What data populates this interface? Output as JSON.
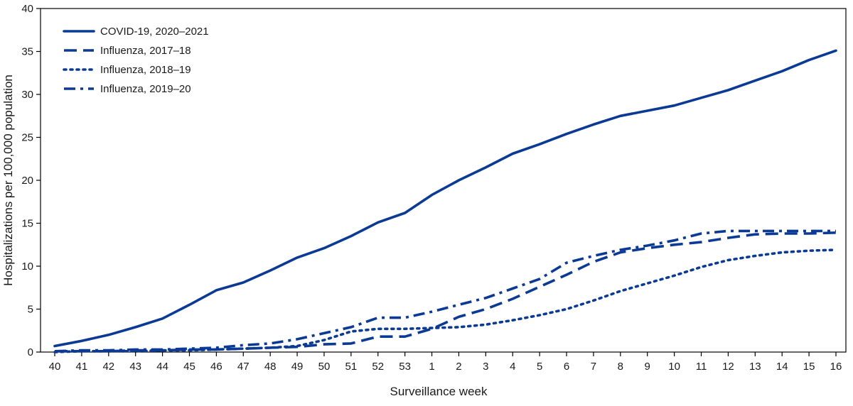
{
  "chart_data": {
    "type": "line",
    "xlabel": "Surveillance week",
    "ylabel": "Hospitalizations per 100,000 population",
    "ylim": [
      0,
      40
    ],
    "yticks": [
      0,
      5,
      10,
      15,
      20,
      25,
      30,
      35,
      40
    ],
    "grid": false,
    "legend_position": "top-left",
    "line_color": "#0b3a95",
    "categories": [
      "40",
      "41",
      "42",
      "43",
      "44",
      "45",
      "46",
      "47",
      "48",
      "49",
      "50",
      "51",
      "52",
      "53",
      "1",
      "2",
      "3",
      "4",
      "5",
      "6",
      "7",
      "8",
      "9",
      "10",
      "11",
      "12",
      "13",
      "14",
      "15",
      "16"
    ],
    "series": [
      {
        "name": "COVID-19, 2020–2021",
        "style": "solid",
        "values": [
          0.7,
          1.3,
          2.0,
          2.9,
          3.9,
          5.5,
          7.2,
          8.1,
          9.5,
          11.0,
          12.1,
          13.5,
          15.1,
          16.2,
          18.3,
          20.0,
          21.5,
          23.1,
          24.2,
          25.4,
          26.5,
          27.5,
          28.1,
          28.7,
          29.6,
          30.5,
          31.6,
          32.7,
          34.0,
          35.1
        ]
      },
      {
        "name": "Influenza, 2017–18",
        "style": "dashed",
        "values": [
          0.1,
          0.1,
          0.1,
          0.2,
          0.2,
          0.3,
          0.3,
          0.4,
          0.5,
          0.6,
          0.9,
          1.0,
          1.8,
          1.8,
          2.7,
          4.1,
          5.0,
          6.2,
          7.6,
          9.0,
          10.5,
          11.6,
          12.1,
          12.5,
          12.8,
          13.3,
          13.7,
          13.8,
          13.8,
          13.9
        ]
      },
      {
        "name": "Influenza, 2018–19",
        "style": "dotted",
        "values": [
          0.0,
          0.1,
          0.1,
          0.1,
          0.2,
          0.2,
          0.3,
          0.4,
          0.5,
          0.7,
          1.4,
          2.4,
          2.7,
          2.7,
          2.8,
          2.9,
          3.2,
          3.7,
          4.3,
          5.0,
          6.0,
          7.1,
          8.0,
          8.9,
          9.9,
          10.7,
          11.2,
          11.6,
          11.8,
          11.9
        ]
      },
      {
        "name": "Influenza, 2019–20",
        "style": "dashdot",
        "values": [
          0.1,
          0.2,
          0.2,
          0.3,
          0.3,
          0.4,
          0.5,
          0.8,
          1.0,
          1.5,
          2.2,
          2.9,
          4.0,
          4.0,
          4.7,
          5.5,
          6.3,
          7.4,
          8.5,
          10.4,
          11.2,
          11.9,
          12.4,
          13.0,
          13.8,
          14.1,
          14.1,
          14.1,
          14.1,
          14.1
        ]
      }
    ]
  }
}
